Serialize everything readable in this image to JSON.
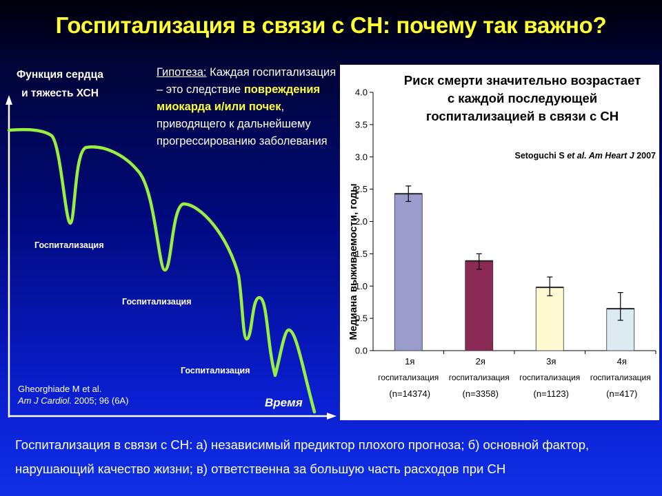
{
  "title": "Госпитализация в связи с СН: почему так важно?",
  "left": {
    "ylabel": "Функция сердца и тяжесть ХСН",
    "xlabel": "Время",
    "hospitalization_label": "Госпитализация",
    "hypothesis": {
      "lead": "Гипотеза:",
      "part1": " Каждая госпитализация – это следствие ",
      "highlight": "повреждения миокарда и/или почек",
      "part2": ", приводящего к дальнейшему прогрессированию заболевания"
    },
    "citation": {
      "authors": "Gheorghiade M et al.",
      "journal": "Am J Cardiol.",
      "details": " 2005; 96 (6A)"
    },
    "colors": {
      "curve": "#99ee44",
      "highlight": "#ffff33"
    }
  },
  "chart_data": {
    "type": "bar",
    "title": "Риск смерти значительно возрастает с каждой последующей госпитализацией в связи с СН",
    "citation": {
      "author": "Setoguchi S",
      "etal": "et al. Am Heart J",
      "year": "2007"
    },
    "ylabel": "Медиана выживаемости, годы",
    "ylim": [
      0,
      4.0
    ],
    "yticks": [
      "0.0",
      "0.5",
      "1.0",
      "1.5",
      "2.0",
      "2.5",
      "3.0",
      "3.5",
      "4.0"
    ],
    "categories": [
      {
        "line1": "1я",
        "line2": "госпитализация",
        "line3": "(n=14374)"
      },
      {
        "line1": "2я",
        "line2": "госпитализация",
        "line3": "(n=3358)"
      },
      {
        "line1": "3я",
        "line2": "госпитализация",
        "line3": "(n=1123)"
      },
      {
        "line1": "4я",
        "line2": "госпитализация",
        "line3": "(n=417)"
      }
    ],
    "values": [
      2.43,
      1.39,
      0.98,
      0.65
    ],
    "error_low": [
      2.31,
      1.26,
      0.85,
      0.47
    ],
    "error_high": [
      2.55,
      1.5,
      1.14,
      0.9
    ],
    "colors": [
      "#9b9bcc",
      "#8a2a55",
      "#fffad2",
      "#dceaf2"
    ]
  },
  "bottom_text": "Госпитализация в связи с СН:  а) независимый предиктор плохого прогноза;  б) основной фактор, нарушающий качество жизни;  в) ответственна за большую часть расходов при СН"
}
